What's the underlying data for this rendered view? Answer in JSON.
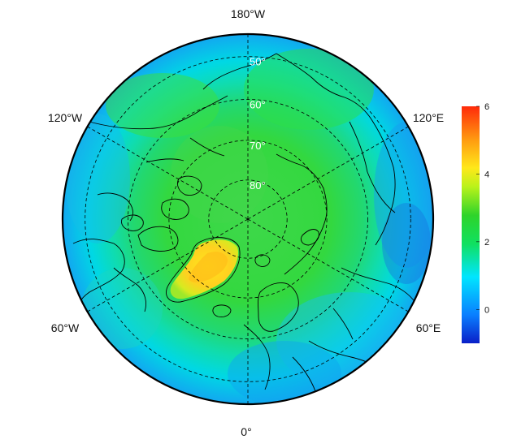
{
  "map": {
    "projection": "north-polar-stereographic",
    "center": "North Pole",
    "colormap": "rainbow (blue-cyan-green-yellow-red)",
    "longitude_labels": {
      "top": "180°W",
      "upper_left": "120°W",
      "upper_right": "120°E",
      "lower_left": "60°W",
      "lower_right": "60°E",
      "bottom": "0°"
    },
    "latitude_labels": [
      "50°",
      "60°",
      "70°",
      "80°"
    ],
    "latitude_circles": [
      50,
      60,
      70,
      80
    ],
    "meridians_deg": [
      0,
      60,
      120,
      180,
      240,
      300
    ],
    "graticule_style": "dashed black",
    "colorbar": {
      "min": -1,
      "max": 6,
      "ticks": [
        "0",
        "2",
        "4",
        "6"
      ],
      "tick_values": [
        0,
        2,
        4,
        6
      ],
      "colors": [
        "#0a1fc8",
        "#0a7fff",
        "#00e5ff",
        "#10e060",
        "#2ed42a",
        "#b9f21a",
        "#ffe81a",
        "#ff9a10",
        "#ff2a0a"
      ]
    }
  }
}
